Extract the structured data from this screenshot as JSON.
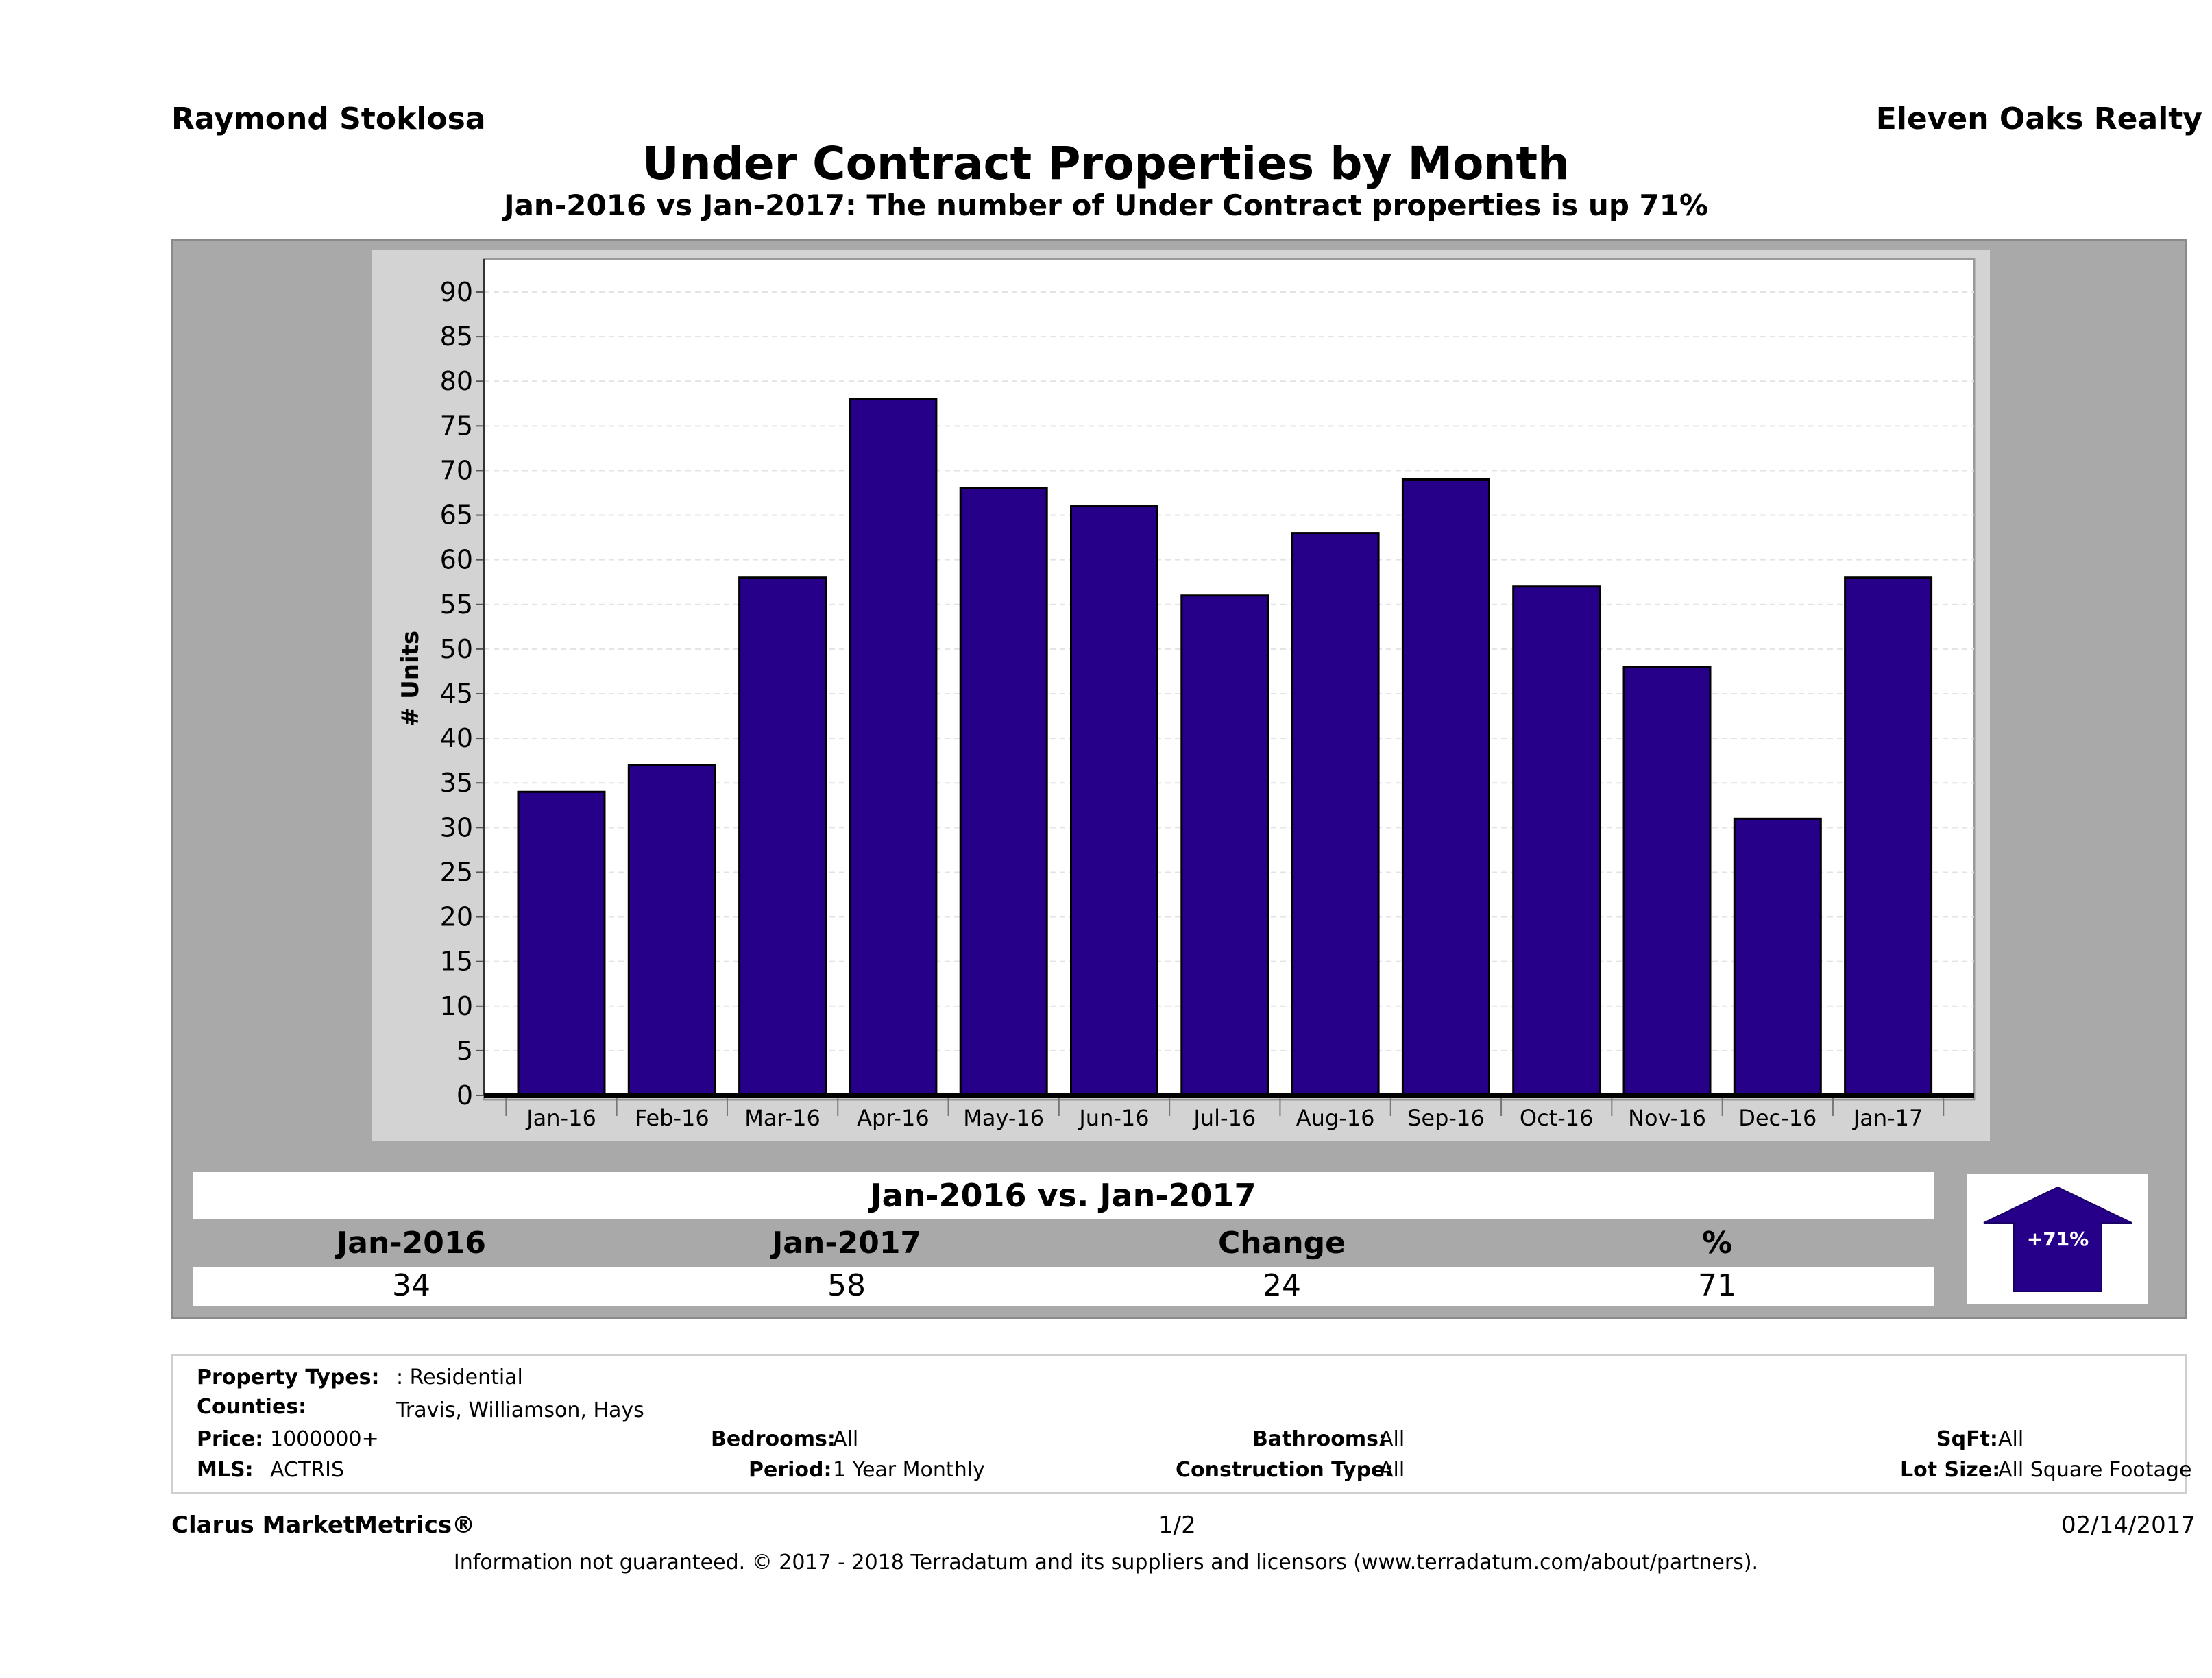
{
  "header": {
    "agent": "Raymond Stoklosa",
    "brokerage": "Eleven Oaks Realty",
    "title": "Under Contract Properties by Month",
    "subtitle": "Jan-2016 vs Jan-2017: The number of Under Contract  properties is up 71%"
  },
  "chart_data": {
    "type": "bar",
    "title": "Under Contract Properties by Month",
    "ylabel": "# Units",
    "xlabel": "",
    "categories": [
      "Jan-16",
      "Feb-16",
      "Mar-16",
      "Apr-16",
      "May-16",
      "Jun-16",
      "Jul-16",
      "Aug-16",
      "Sep-16",
      "Oct-16",
      "Nov-16",
      "Dec-16",
      "Jan-17"
    ],
    "values": [
      34,
      37,
      58,
      78,
      68,
      66,
      56,
      63,
      69,
      57,
      48,
      31,
      58
    ],
    "ylim": [
      0,
      90
    ],
    "yticks": [
      "0",
      "5",
      "10",
      "15",
      "20",
      "25",
      "30",
      "35",
      "40",
      "45",
      "50",
      "55",
      "60",
      "65",
      "70",
      "75",
      "80",
      "85",
      "90"
    ],
    "grid": true,
    "bar_color": "#27008a"
  },
  "comparison": {
    "heading": "Jan-2016 vs. Jan-2017",
    "col1_label": "Jan-2016",
    "col2_label": "Jan-2017",
    "col3_label": "Change",
    "col4_label": "%",
    "col1_value": "34",
    "col2_value": "58",
    "col3_value": "24",
    "col4_value": "71",
    "badge": "+71%",
    "badge_color": "#27008a"
  },
  "info": {
    "property_types_label": "Property Types:",
    "property_types_value": ": Residential",
    "counties_label": "Counties:",
    "counties_value": "Travis, Williamson, Hays",
    "price_label": "Price:",
    "price_value": "1000000+",
    "mls_label": "MLS:",
    "mls_value": "ACTRIS",
    "bedrooms_label": "Bedrooms:",
    "bedrooms_value": "All",
    "period_label": "Period:",
    "period_value": "1 Year Monthly",
    "bathrooms_label": "Bathrooms:",
    "bathrooms_value": "All",
    "construction_label": "Construction Type:",
    "construction_value": "All",
    "sqft_label": "SqFt:",
    "sqft_value": "All",
    "lotsize_label": "Lot Size:",
    "lotsize_value": "All Square Footage"
  },
  "footer": {
    "product": "Clarus MarketMetrics®",
    "page": "1/2",
    "date": "02/14/2017",
    "disclaimer": "Information not guaranteed. © 2017 - 2018 Terradatum and its suppliers and licensors (www.terradatum.com/about/partners)."
  }
}
